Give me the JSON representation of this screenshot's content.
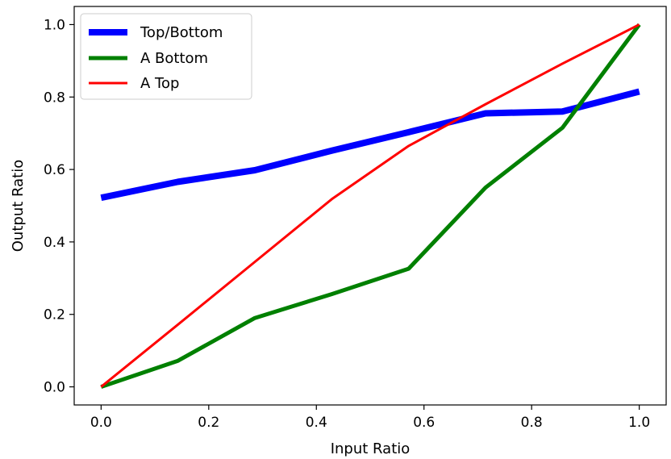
{
  "chart_data": {
    "type": "line",
    "title": "",
    "xlabel": "Input Ratio",
    "ylabel": "Output Ratio",
    "xlim": [
      -0.05,
      1.05
    ],
    "ylim": [
      -0.05,
      1.05
    ],
    "xticks": [
      "0.0",
      "0.2",
      "0.4",
      "0.6",
      "0.8",
      "1.0"
    ],
    "yticks": [
      "0.0",
      "0.2",
      "0.4",
      "0.6",
      "0.8",
      "1.0"
    ],
    "grid": false,
    "legend_position": "top-left",
    "x": [
      0.0,
      0.142857,
      0.285714,
      0.428571,
      0.571429,
      0.714286,
      0.857143,
      1.0
    ],
    "series": [
      {
        "name": "Top/Bottom",
        "color": "#0000ff",
        "values": [
          0.522,
          0.566,
          0.598,
          0.652,
          0.703,
          0.755,
          0.76,
          0.815
        ]
      },
      {
        "name": "A Bottom",
        "color": "#008000",
        "values": [
          0.0,
          0.072,
          0.19,
          0.256,
          0.326,
          0.55,
          0.715,
          1.0
        ]
      },
      {
        "name": "A Top",
        "color": "#ff0000",
        "values": [
          0.0,
          0.172,
          0.345,
          0.518,
          0.665,
          0.78,
          0.892,
          1.0
        ]
      }
    ]
  }
}
